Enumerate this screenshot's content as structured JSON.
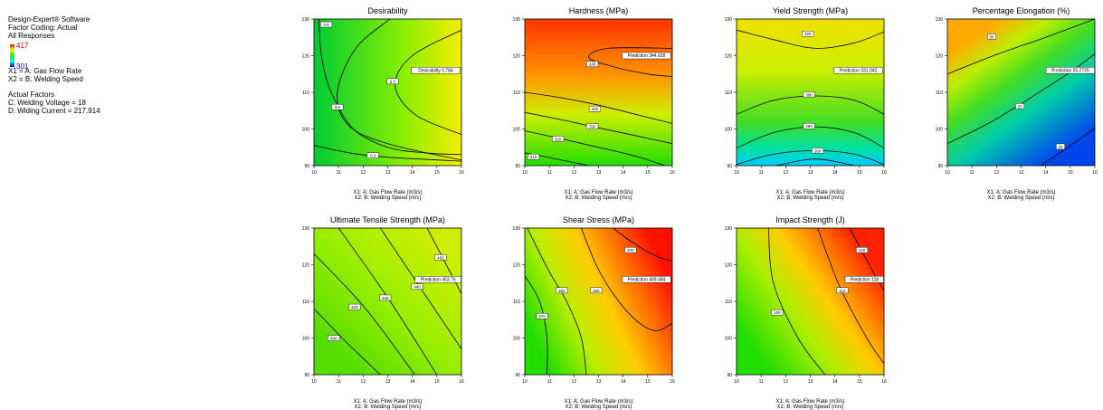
{
  "info": {
    "software": "Design-Expert® Software",
    "coding": "Factor Coding: Actual",
    "responses": "All Responses",
    "legend_high": "417",
    "legend_low": "301",
    "x1": "X1 = A: Gas Flow Rate",
    "x2": "X2 = B: Welding Speed",
    "actual_factors_title": "Actual Factors",
    "factor_c": "C: Welding Voltage = 18",
    "factor_d": "D: Wlding Current = 217.914"
  },
  "chart_data": [
    {
      "type": "contour",
      "title": "Desirability",
      "xlabel": "X1: A: Gas Flow Rate (m3/s)",
      "ylabel": "X2: B: Welding Speed (m/s)",
      "xlim": [
        10,
        16
      ],
      "ylim": [
        90,
        130
      ],
      "x_ticks": [
        "10",
        "11",
        "12",
        "13",
        "14",
        "15",
        "16"
      ],
      "y_ticks": [
        "90",
        "100",
        "110",
        "120",
        "130"
      ],
      "color_stops": [
        [
          0,
          "#00cc33"
        ],
        [
          0.6,
          "#88ee00"
        ],
        [
          1,
          "#f4ee00"
        ]
      ],
      "gradient_angle": 0,
      "contours": [
        {
          "points": [
            [
              10.2,
              130
            ],
            [
              10.3,
              120
            ],
            [
              10.7,
              110
            ],
            [
              11.6,
              100
            ],
            [
              13.0,
              95
            ],
            [
              14.5,
              93.5
            ],
            [
              16,
              93
            ]
          ],
          "label": "0.5",
          "at": [
            10.5,
            128.5
          ]
        },
        {
          "points": [
            [
              13.1,
              130
            ],
            [
              11.7,
              122
            ],
            [
              10.95,
              110
            ],
            [
              11.4,
              101
            ],
            [
              13.0,
              96
            ],
            [
              16,
              91.5
            ]
          ],
          "label": "0.6",
          "at": [
            10.95,
            106
          ]
        },
        {
          "points": [
            [
              16,
              127
            ],
            [
              14.0,
              120
            ],
            [
              13.3,
              112
            ],
            [
              14.1,
              104
            ],
            [
              16,
              98.5
            ]
          ],
          "label": "0.7",
          "at": [
            13.2,
            113
          ]
        },
        {
          "points": [
            [
              10,
              95.5
            ],
            [
              11.5,
              93.4
            ],
            [
              13,
              92.3
            ],
            [
              16,
              91.2
            ]
          ],
          "label": "0.3",
          "at": [
            12.4,
            92.8
          ]
        }
      ],
      "flag": {
        "text": "Desirability 0.784",
        "x": 14.95,
        "y": 116
      }
    },
    {
      "type": "contour",
      "title": "Hardness (MPa)",
      "xlabel": "X1: A: Gas Flow Rate (m3/s)",
      "ylabel": "X2: B: Welding Speed (m/s)",
      "xlim": [
        10,
        16
      ],
      "ylim": [
        90,
        130
      ],
      "x_ticks": [
        "10",
        "11",
        "12",
        "13",
        "14",
        "15",
        "16"
      ],
      "y_ticks": [
        "90",
        "100",
        "110",
        "120",
        "130"
      ],
      "color_stops": [
        [
          0,
          "#22dd00"
        ],
        [
          0.35,
          "#ccee00"
        ],
        [
          0.6,
          "#ff9900"
        ],
        [
          1,
          "#ff3300"
        ]
      ],
      "gradient_angle": 90,
      "contours": [
        {
          "points": [
            [
              16,
              122
            ],
            [
              13.4,
              122
            ],
            [
              12.6,
              119.5
            ],
            [
              13.6,
              117
            ],
            [
              15.0,
              115
            ],
            [
              16,
              114.3
            ]
          ],
          "label": "345",
          "at": [
            12.75,
            117.7
          ]
        },
        {
          "points": [
            [
              10,
              110
            ],
            [
              11.5,
              108.5
            ],
            [
              13,
              106.5
            ],
            [
              14.5,
              104
            ],
            [
              16,
              101.5
            ]
          ],
          "label": "340",
          "at": [
            12.85,
            105.5
          ]
        },
        {
          "points": [
            [
              10,
              104.5
            ],
            [
              11.5,
              102.5
            ],
            [
              13,
              100.3
            ],
            [
              14.5,
              98.2
            ],
            [
              16,
              96
            ]
          ],
          "label": "330",
          "at": [
            12.75,
            100.7
          ]
        },
        {
          "points": [
            [
              10,
              99.5
            ],
            [
              11.5,
              97.3
            ],
            [
              13,
              95
            ],
            [
              14.5,
              92.6
            ],
            [
              15.7,
              90
            ]
          ],
          "label": "320",
          "at": [
            11.35,
            97.3
          ]
        },
        {
          "points": [
            [
              10,
              93.5
            ],
            [
              11,
              92.2
            ],
            [
              12.6,
              90
            ]
          ],
          "label": "310",
          "at": [
            10.35,
            92.4
          ]
        }
      ],
      "flag": {
        "text": "Prediction 344.628",
        "x": 14.95,
        "y": 120
      }
    },
    {
      "type": "contour",
      "title": "Yield Strength (MPa)",
      "xlabel": "X1: A: Gas Flow Rate (m3/s)",
      "ylabel": "X2: B: Welding Speed (m/s)",
      "xlim": [
        10,
        16
      ],
      "ylim": [
        90,
        130
      ],
      "x_ticks": [
        "10",
        "11",
        "12",
        "13",
        "14",
        "15",
        "16"
      ],
      "y_ticks": [
        "90",
        "100",
        "110",
        "120",
        "130"
      ],
      "color_stops": [
        [
          0,
          "#00ccff"
        ],
        [
          0.12,
          "#00e0a0"
        ],
        [
          0.3,
          "#44dd22"
        ],
        [
          0.65,
          "#ccee00"
        ],
        [
          1,
          "#f0e000"
        ]
      ],
      "gradient_angle": 90,
      "contours": [
        {
          "points": [
            [
              10,
              127
            ],
            [
              11.5,
              124.4
            ],
            [
              13.2,
              122
            ],
            [
              14.8,
              123.5
            ],
            [
              16,
              126.5
            ]
          ],
          "label": "320",
          "at": [
            12.9,
            126
          ]
        },
        {
          "points": [
            [
              10,
              104
            ],
            [
              11.5,
              107.8
            ],
            [
              13.2,
              109
            ],
            [
              14.8,
              107.8
            ],
            [
              16,
              104
            ]
          ],
          "label": "300",
          "at": [
            12.95,
            109.4
          ]
        },
        {
          "points": [
            [
              10,
              94.8
            ],
            [
              11.5,
              99
            ],
            [
              13.2,
              100.6
            ],
            [
              14.8,
              99
            ],
            [
              16,
              94.8
            ]
          ],
          "label": "280",
          "at": [
            12.95,
            100.8
          ]
        },
        {
          "points": [
            [
              10,
              90.3
            ],
            [
              11.5,
              93.1
            ],
            [
              13.2,
              94.1
            ],
            [
              14.8,
              93.1
            ],
            [
              16,
              90.3
            ]
          ],
          "label": "260",
          "at": [
            13.3,
            94.1
          ]
        },
        {
          "points": [
            [
              11.6,
              90
            ],
            [
              13.2,
              91.8
            ],
            [
              14.8,
              90
            ]
          ],
          "label": "",
          "at": [
            0,
            0
          ]
        }
      ],
      "flag": {
        "text": "Prediction 331.042",
        "x": 14.95,
        "y": 116
      }
    },
    {
      "type": "contour",
      "title": "Percentage Elongation (%)",
      "xlabel": "X1: A: Gas Flow Rate (m3/s)",
      "ylabel": "X2: B: Welding Speed (m/s)",
      "xlim": [
        10,
        16
      ],
      "ylim": [
        90,
        130
      ],
      "x_ticks": [
        "10",
        "11",
        "12",
        "13",
        "14",
        "15",
        "16"
      ],
      "y_ticks": [
        "90",
        "100",
        "110",
        "120",
        "130"
      ],
      "color_stops": [
        [
          0,
          "#0044ee"
        ],
        [
          0.35,
          "#00ccaa"
        ],
        [
          0.6,
          "#44dd22"
        ],
        [
          0.8,
          "#bbee00"
        ],
        [
          1,
          "#ffaa00"
        ]
      ],
      "gradient_angle": 125,
      "contours": [
        {
          "points": [
            [
              10,
              115
            ],
            [
              12,
              120.3
            ],
            [
              14,
              125
            ],
            [
              16,
              130
            ]
          ],
          "label": "30",
          "at": [
            11.8,
            125.2
          ]
        },
        {
          "points": [
            [
              10,
              96
            ],
            [
              11.8,
              102
            ],
            [
              13.5,
              109
            ],
            [
              15,
              115.5
            ],
            [
              16,
              120.5
            ]
          ],
          "label": "25",
          "at": [
            12.95,
            106.2
          ]
        },
        {
          "points": [
            [
              13.8,
              90
            ],
            [
              14.9,
              95
            ],
            [
              16,
              100.2
            ]
          ],
          "label": "20",
          "at": [
            14.6,
            95.2
          ]
        }
      ],
      "flag": {
        "text": "Prediction 25.2725",
        "x": 15.0,
        "y": 116
      }
    },
    {
      "type": "contour",
      "title": "Ultimate Tensile Strength (MPa)",
      "xlabel": "X1: A: Gas Flow Rate (m3/s)",
      "ylabel": "X2: B: Welding Speed (m/s)",
      "xlim": [
        10,
        16
      ],
      "ylim": [
        90,
        130
      ],
      "x_ticks": [
        "10",
        "11",
        "12",
        "13",
        "14",
        "15",
        "16"
      ],
      "y_ticks": [
        "90",
        "100",
        "110",
        "120",
        "130"
      ],
      "color_stops": [
        [
          0,
          "#55dd00"
        ],
        [
          0.5,
          "#99ee00"
        ],
        [
          1,
          "#ccee00"
        ]
      ],
      "gradient_angle": 45,
      "contours": [
        {
          "points": [
            [
              10,
              108
            ],
            [
              11.3,
              99
            ],
            [
              12.7,
              90
            ]
          ],
          "label": "400",
          "at": [
            10.8,
            100
          ]
        },
        {
          "points": [
            [
              10,
              123
            ],
            [
              12.1,
              108
            ],
            [
              14.1,
              90
            ]
          ],
          "label": "420",
          "at": [
            11.65,
            108.5
          ]
        },
        {
          "points": [
            [
              11,
              130
            ],
            [
              13,
              111
            ],
            [
              15,
              90
            ]
          ],
          "label": "430",
          "at": [
            12.9,
            111
          ]
        },
        {
          "points": [
            [
              12.7,
              130
            ],
            [
              14.2,
              115
            ],
            [
              16,
              97
            ]
          ],
          "label": "440",
          "at": [
            14.2,
            114
          ]
        },
        {
          "points": [
            [
              14.6,
              130
            ],
            [
              15.5,
              118.5
            ],
            [
              16,
              112
            ]
          ],
          "label": "450",
          "at": [
            15.15,
            122
          ]
        }
      ],
      "flag": {
        "text": "Prediction 453.76",
        "x": 15.05,
        "y": 116
      }
    },
    {
      "type": "contour",
      "title": "Shear Stress (MPa)",
      "xlabel": "X1: A: Gas Flow Rate (m3/s)",
      "ylabel": "X2: B: Welding Speed (m/s)",
      "xlim": [
        10,
        16
      ],
      "ylim": [
        90,
        130
      ],
      "x_ticks": [
        "10",
        "11",
        "12",
        "13",
        "14",
        "15",
        "16"
      ],
      "y_ticks": [
        "90",
        "100",
        "110",
        "120",
        "130"
      ],
      "color_stops": [
        [
          0,
          "#22dd00"
        ],
        [
          0.3,
          "#bbee00"
        ],
        [
          0.55,
          "#ffcc00"
        ],
        [
          0.8,
          "#ff6600"
        ],
        [
          1,
          "#ff1100"
        ]
      ],
      "gradient_angle": 25,
      "contours": [
        {
          "points": [
            [
              10.1,
              130
            ],
            [
              11.0,
              118
            ],
            [
              11.7,
              110
            ],
            [
              12.3,
              100
            ],
            [
              12.5,
              90
            ]
          ],
          "label": "380",
          "at": [
            11.5,
            113
          ]
        },
        {
          "points": [
            [
              10.0,
              117
            ],
            [
              10.6,
              110
            ],
            [
              10.9,
              100
            ],
            [
              10.9,
              90
            ]
          ],
          "label": "370",
          "at": [
            10.7,
            106
          ]
        },
        {
          "points": [
            [
              12.3,
              130
            ],
            [
              12.9,
              120
            ],
            [
              13.6,
              112
            ],
            [
              14.5,
              105
            ],
            [
              15.3,
              102
            ],
            [
              16,
              104
            ]
          ],
          "label": "390",
          "at": [
            12.9,
            113
          ]
        },
        {
          "points": [
            [
              13.6,
              130
            ],
            [
              14.4,
              126
            ],
            [
              15.3,
              122.5
            ],
            [
              16,
              121
            ]
          ],
          "label": "400",
          "at": [
            14.3,
            124
          ]
        }
      ],
      "flag": {
        "text": "Prediction 409.484",
        "x": 14.95,
        "y": 116
      }
    },
    {
      "type": "contour",
      "title": "Impact Strength (J)",
      "xlabel": "X1: A: Gas Flow Rate (m3/s)",
      "ylabel": "X2: B: Welding Speed (m/s)",
      "xlim": [
        10,
        16
      ],
      "ylim": [
        90,
        130
      ],
      "x_ticks": [
        "10",
        "11",
        "12",
        "13",
        "14",
        "15",
        "16"
      ],
      "y_ticks": [
        "90",
        "100",
        "110",
        "120",
        "130"
      ],
      "color_stops": [
        [
          0,
          "#22dd00"
        ],
        [
          0.35,
          "#aaee00"
        ],
        [
          0.6,
          "#ffcc00"
        ],
        [
          0.85,
          "#ff6600"
        ],
        [
          1,
          "#ff2200"
        ]
      ],
      "gradient_angle": 35,
      "contours": [
        {
          "points": [
            [
              11.3,
              130
            ],
            [
              11.5,
              115
            ],
            [
              12.5,
              100
            ],
            [
              13.6,
              90
            ]
          ],
          "label": "100",
          "at": [
            11.65,
            107
          ]
        },
        {
          "points": [
            [
              13.3,
              130
            ],
            [
              14.2,
              114
            ],
            [
              15.3,
              100
            ],
            [
              16,
              93
            ]
          ],
          "label": "110",
          "at": [
            14.3,
            113
          ]
        },
        {
          "points": [
            [
              14.6,
              130
            ],
            [
              15.4,
              120
            ],
            [
              16,
              113
            ]
          ],
          "label": "120",
          "at": [
            15.1,
            124
          ]
        }
      ],
      "flag": {
        "text": "Prediction 118",
        "x": 15.2,
        "y": 116
      }
    }
  ]
}
